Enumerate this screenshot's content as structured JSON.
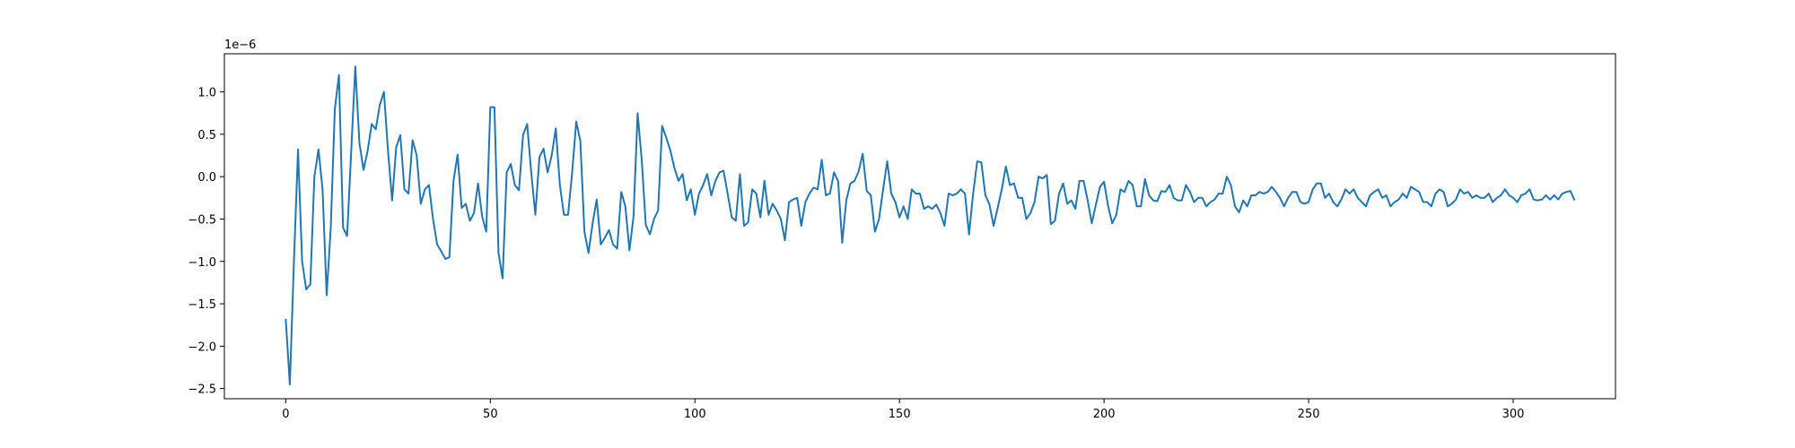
{
  "chart_data": {
    "type": "line",
    "title": "",
    "xlabel": "",
    "ylabel": "",
    "y_offset_label": "1e−6",
    "xlim": [
      -15,
      325
    ],
    "ylim": [
      -2.62,
      1.45
    ],
    "xticks": [
      0,
      50,
      100,
      150,
      200,
      250,
      300
    ],
    "xtick_labels": [
      "0",
      "50",
      "100",
      "150",
      "200",
      "250",
      "300"
    ],
    "yticks": [
      -2.5,
      -2.0,
      -1.5,
      -1.0,
      -0.5,
      0.0,
      0.5,
      1.0
    ],
    "ytick_labels": [
      "−2.5",
      "−2.0",
      "−1.5",
      "−1.0",
      "−0.5",
      "0.0",
      "0.5",
      "1.0"
    ],
    "grid": false,
    "line_color": "#1f77b4",
    "series": [
      {
        "x_start": 0,
        "x_step": 1,
        "values": [
          -1.68,
          -2.45,
          -1.0,
          0.32,
          -1.0,
          -1.33,
          -1.27,
          0.0,
          0.32,
          -0.15,
          -1.4,
          -0.6,
          0.8,
          1.2,
          -0.6,
          -0.7,
          0.3,
          1.3,
          0.4,
          0.08,
          0.3,
          0.62,
          0.56,
          0.85,
          1.0,
          0.3,
          -0.28,
          0.35,
          0.49,
          -0.15,
          -0.2,
          0.43,
          0.25,
          -0.32,
          -0.15,
          -0.1,
          -0.5,
          -0.8,
          -0.88,
          -0.97,
          -0.95,
          -0.05,
          0.26,
          -0.37,
          -0.32,
          -0.52,
          -0.43,
          -0.08,
          -0.47,
          -0.65,
          0.82,
          0.82,
          -0.9,
          -1.2,
          0.05,
          0.15,
          -0.1,
          -0.16,
          0.49,
          0.62,
          0.05,
          -0.45,
          0.23,
          0.33,
          0.05,
          0.25,
          0.57,
          -0.1,
          -0.45,
          -0.45,
          0.05,
          0.65,
          0.42,
          -0.65,
          -0.9,
          -0.55,
          -0.27,
          -0.8,
          -0.72,
          -0.63,
          -0.8,
          -0.85,
          -0.18,
          -0.35,
          -0.87,
          -0.47,
          0.75,
          0.2,
          -0.57,
          -0.68,
          -0.5,
          -0.4,
          0.6,
          0.46,
          0.31,
          0.1,
          -0.05,
          0.03,
          -0.28,
          -0.15,
          -0.45,
          -0.2,
          -0.1,
          0.03,
          -0.22,
          -0.05,
          0.05,
          0.07,
          -0.2,
          -0.48,
          -0.52,
          0.03,
          -0.58,
          -0.54,
          -0.15,
          -0.2,
          -0.48,
          -0.05,
          -0.45,
          -0.32,
          -0.4,
          -0.5,
          -0.75,
          -0.3,
          -0.27,
          -0.25,
          -0.58,
          -0.3,
          -0.2,
          -0.13,
          -0.15,
          0.2,
          -0.22,
          -0.2,
          0.05,
          -0.05,
          -0.78,
          -0.28,
          -0.08,
          -0.05,
          0.06,
          0.27,
          -0.17,
          -0.22,
          -0.65,
          -0.5,
          -0.15,
          0.18,
          -0.2,
          -0.3,
          -0.48,
          -0.35,
          -0.5,
          -0.15,
          -0.2,
          -0.2,
          -0.38,
          -0.35,
          -0.38,
          -0.33,
          -0.43,
          -0.58,
          -0.2,
          -0.22,
          -0.2,
          -0.15,
          -0.2,
          -0.68,
          -0.2,
          0.18,
          0.17,
          -0.22,
          -0.33,
          -0.58,
          -0.37,
          -0.15,
          0.12,
          -0.1,
          -0.08,
          -0.25,
          -0.25,
          -0.5,
          -0.43,
          -0.3,
          0.0,
          -0.02,
          0.02,
          -0.56,
          -0.52,
          -0.2,
          -0.08,
          -0.32,
          -0.28,
          -0.38,
          -0.05,
          -0.05,
          -0.28,
          -0.55,
          -0.33,
          -0.12,
          -0.06,
          -0.35,
          -0.55,
          -0.45,
          -0.15,
          -0.18,
          -0.05,
          -0.1,
          -0.35,
          -0.35,
          -0.03,
          -0.22,
          -0.28,
          -0.29,
          -0.17,
          -0.18,
          -0.1,
          -0.25,
          -0.28,
          -0.28,
          -0.1,
          -0.18,
          -0.3,
          -0.25,
          -0.25,
          -0.35,
          -0.3,
          -0.27,
          -0.2,
          -0.2,
          0.0,
          -0.1,
          -0.35,
          -0.42,
          -0.28,
          -0.35,
          -0.22,
          -0.22,
          -0.18,
          -0.2,
          -0.18,
          -0.12,
          -0.18,
          -0.25,
          -0.35,
          -0.25,
          -0.18,
          -0.18,
          -0.3,
          -0.32,
          -0.3,
          -0.15,
          -0.08,
          -0.08,
          -0.25,
          -0.2,
          -0.3,
          -0.35,
          -0.27,
          -0.15,
          -0.2,
          -0.15,
          -0.25,
          -0.3,
          -0.35,
          -0.22,
          -0.18,
          -0.15,
          -0.25,
          -0.22,
          -0.35,
          -0.3,
          -0.27,
          -0.2,
          -0.25,
          -0.12,
          -0.15,
          -0.18,
          -0.3,
          -0.3,
          -0.35,
          -0.2,
          -0.15,
          -0.18,
          -0.35,
          -0.32,
          -0.27,
          -0.15,
          -0.2,
          -0.18,
          -0.25,
          -0.22,
          -0.25,
          -0.25,
          -0.2,
          -0.3,
          -0.25,
          -0.22,
          -0.15,
          -0.22,
          -0.25,
          -0.3,
          -0.22,
          -0.2,
          -0.15,
          -0.27,
          -0.28,
          -0.27,
          -0.22,
          -0.27,
          -0.22,
          -0.27,
          -0.2,
          -0.18,
          -0.17,
          -0.28
        ]
      }
    ]
  }
}
